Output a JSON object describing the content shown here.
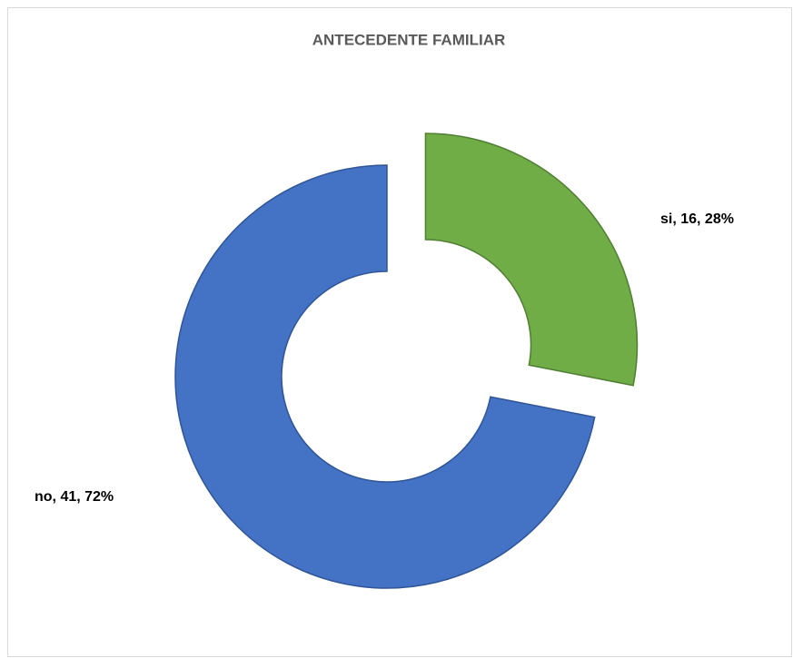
{
  "chart_data": {
    "type": "doughnut",
    "title": "ANTECEDENTE FAMILIAR",
    "categories": [
      "si",
      "no"
    ],
    "values": [
      16,
      41
    ],
    "value_labels": [
      "si, 16, 28%",
      "no, 41, 72%"
    ],
    "colors": [
      "#70ad47",
      "#4472c4"
    ]
  }
}
